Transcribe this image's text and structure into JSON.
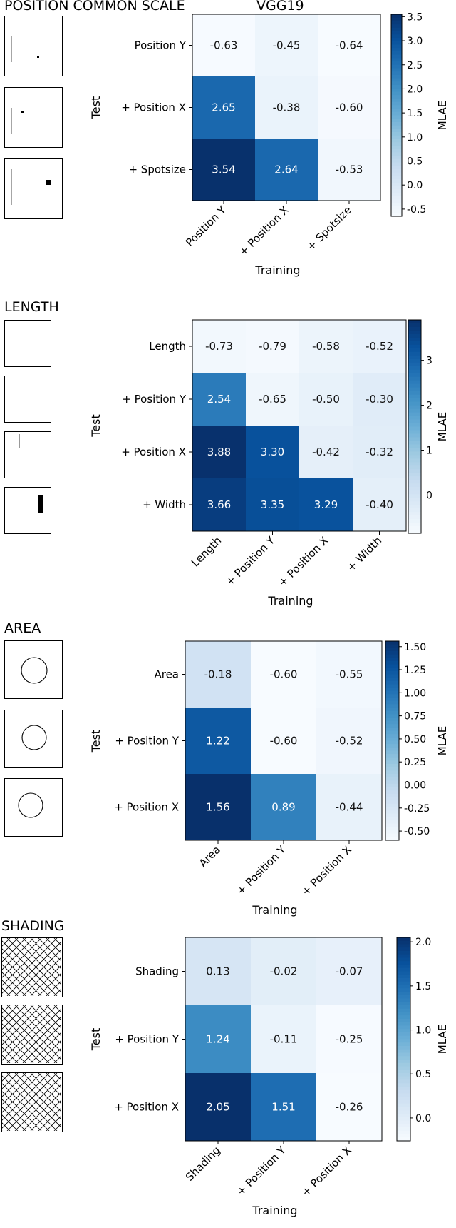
{
  "chart_data": [
    {
      "type": "heatmap",
      "section_title": "POSITION COMMON SCALE",
      "title": "VGG19",
      "xlabel": "Training",
      "ylabel": "Test",
      "colorbar_label": "MLAE",
      "x_categories": [
        "Position Y",
        "+ Position X",
        "+ Spotsize"
      ],
      "y_categories": [
        "Position Y",
        "+ Position X",
        "+ Spotsize"
      ],
      "values": [
        [
          -0.63,
          -0.45,
          -0.64
        ],
        [
          2.65,
          -0.38,
          -0.6
        ],
        [
          3.54,
          2.64,
          -0.53
        ]
      ],
      "value_labels": [
        [
          "-0.63",
          "-0.45",
          "-0.64"
        ],
        [
          "2.65",
          "-0.38",
          "-0.60"
        ],
        [
          "3.54",
          "2.64",
          "-0.53"
        ]
      ],
      "color_range": [
        -0.65,
        3.55
      ],
      "colorbar_ticks": [
        "-0.5",
        "0.0",
        "0.5",
        "1.0",
        "1.5",
        "2.0",
        "2.5",
        "3.0",
        "3.5"
      ],
      "colormap": "Blues",
      "thumbnails": [
        "position-y-stimulus-icon",
        "position-x-stimulus-icon",
        "spotsize-stimulus-icon"
      ]
    },
    {
      "type": "heatmap",
      "section_title": "LENGTH",
      "title": "",
      "xlabel": "Training",
      "ylabel": "Test",
      "colorbar_label": "MLAE",
      "x_categories": [
        "Length",
        "+ Position Y",
        "+ Position X",
        "+ Width"
      ],
      "y_categories": [
        "Length",
        "+ Position Y",
        "+ Position X",
        "+ Width"
      ],
      "values": [
        [
          -0.73,
          -0.79,
          -0.58,
          -0.52
        ],
        [
          2.54,
          -0.65,
          -0.5,
          -0.3
        ],
        [
          3.88,
          3.3,
          -0.42,
          -0.32
        ],
        [
          3.66,
          3.35,
          3.29,
          -0.4
        ]
      ],
      "value_labels": [
        [
          "-0.73",
          "-0.79",
          "-0.58",
          "-0.52"
        ],
        [
          "2.54",
          "-0.65",
          "-0.50",
          "-0.30"
        ],
        [
          "3.88",
          "3.30",
          "-0.42",
          "-0.32"
        ],
        [
          "3.66",
          "3.35",
          "3.29",
          "-0.40"
        ]
      ],
      "color_range": [
        -0.85,
        3.9
      ],
      "colorbar_ticks": [
        "0",
        "1",
        "2",
        "3"
      ],
      "colormap": "Blues",
      "thumbnails": [
        "length-stimulus-icon",
        "length-position-y-stimulus-icon",
        "length-position-x-stimulus-icon",
        "length-width-stimulus-icon"
      ]
    },
    {
      "type": "heatmap",
      "section_title": "AREA",
      "title": "",
      "xlabel": "Training",
      "ylabel": "Test",
      "colorbar_label": "MLAE",
      "x_categories": [
        "Area",
        "+ Position Y",
        "+ Position X"
      ],
      "y_categories": [
        "Area",
        "+ Position Y",
        "+ Position X"
      ],
      "values": [
        [
          -0.18,
          -0.6,
          -0.55
        ],
        [
          1.22,
          -0.6,
          -0.52
        ],
        [
          1.56,
          0.89,
          -0.44
        ]
      ],
      "value_labels": [
        [
          "-0.18",
          "-0.60",
          "-0.55"
        ],
        [
          "1.22",
          "-0.60",
          "-0.52"
        ],
        [
          "1.56",
          "0.89",
          "-0.44"
        ]
      ],
      "color_range": [
        -0.6,
        1.56
      ],
      "colorbar_ticks": [
        "-0.50",
        "-0.25",
        "0.00",
        "0.25",
        "0.50",
        "0.75",
        "1.00",
        "1.25",
        "1.50"
      ],
      "colormap": "Blues",
      "thumbnails": [
        "area-circle-stimulus-icon",
        "area-position-y-stimulus-icon",
        "area-position-x-stimulus-icon"
      ]
    },
    {
      "type": "heatmap",
      "section_title": "SHADING",
      "title": "",
      "xlabel": "Training",
      "ylabel": "Test",
      "colorbar_label": "MLAE",
      "x_categories": [
        "Shading",
        "+ Position Y",
        "+ Position X"
      ],
      "y_categories": [
        "Shading",
        "+ Position Y",
        "+ Position X"
      ],
      "values": [
        [
          0.13,
          -0.02,
          -0.07
        ],
        [
          1.24,
          -0.11,
          -0.25
        ],
        [
          2.05,
          1.51,
          -0.26
        ]
      ],
      "value_labels": [
        [
          "0.13",
          "-0.02",
          "-0.07"
        ],
        [
          "1.24",
          "-0.11",
          "-0.25"
        ],
        [
          "2.05",
          "1.51",
          "-0.26"
        ]
      ],
      "color_range": [
        -0.26,
        2.05
      ],
      "colorbar_ticks": [
        "0.0",
        "0.5",
        "1.0",
        "1.5",
        "2.0"
      ],
      "colormap": "Blues",
      "thumbnails": [
        "shading-hatch-stimulus-icon",
        "shading-hatch-stimulus-icon",
        "shading-hatch-stimulus-icon"
      ]
    }
  ]
}
